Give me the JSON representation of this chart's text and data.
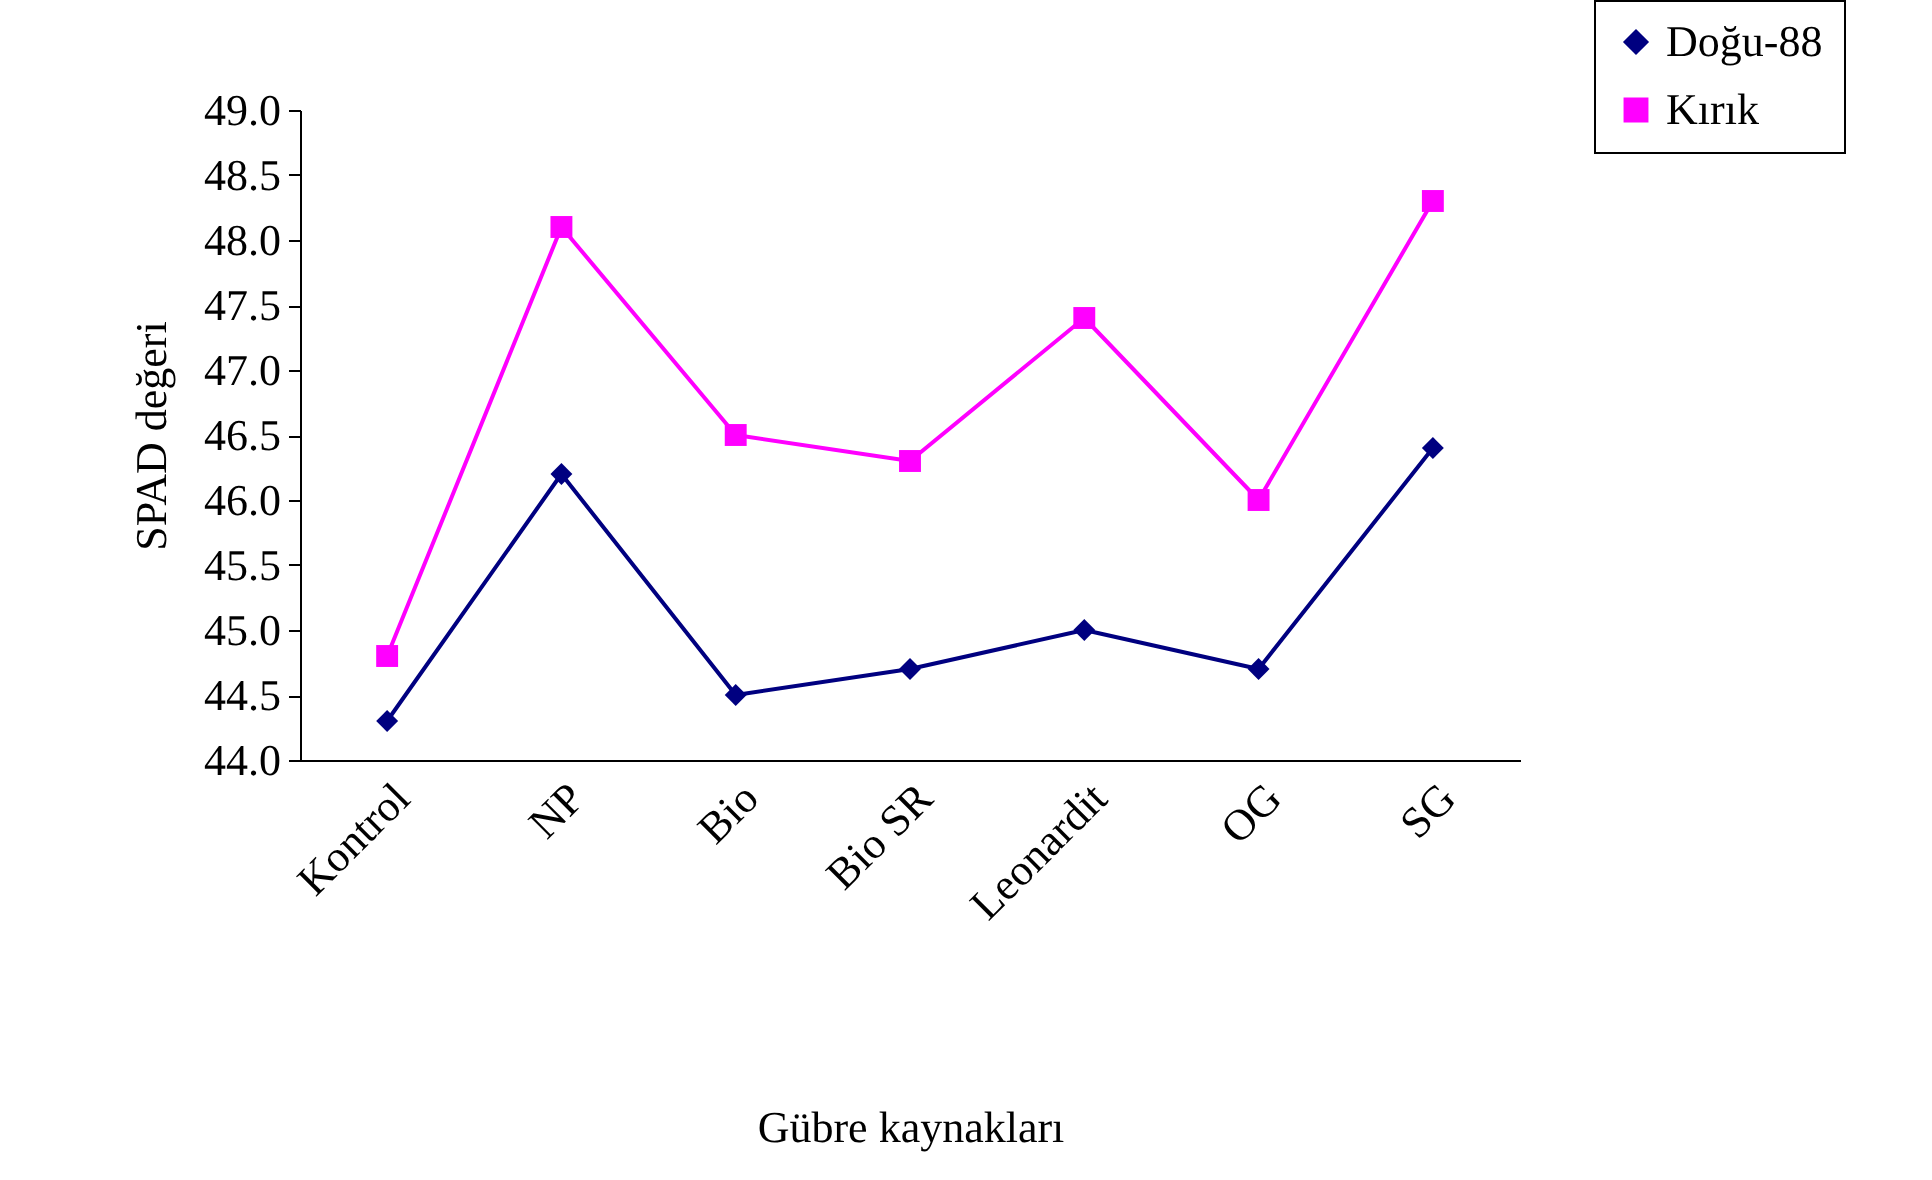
{
  "chart_data": {
    "type": "line",
    "xlabel": "Gübre kaynakları",
    "ylabel": "SPAD değeri",
    "categories": [
      "Kontrol",
      "NP",
      "Bio",
      "Bio SR",
      "Leonardit",
      "OG",
      "SG"
    ],
    "series": [
      {
        "name": "Doğu-88",
        "color": "#000080",
        "marker": "diamond",
        "values": [
          44.3,
          46.2,
          44.5,
          44.7,
          45.0,
          44.7,
          46.4
        ]
      },
      {
        "name": "Kırık",
        "color": "#ff00ff",
        "marker": "square",
        "values": [
          44.8,
          48.1,
          46.5,
          46.3,
          47.4,
          46.0,
          48.3
        ]
      }
    ],
    "ylim": [
      44,
      49
    ],
    "yticks": [
      {
        "value": 44,
        "label": "44.0"
      },
      {
        "value": 44.5,
        "label": "44.5"
      },
      {
        "value": 45,
        "label": "45.0"
      },
      {
        "value": 45.5,
        "label": "45.5"
      },
      {
        "value": 46,
        "label": "46.0"
      },
      {
        "value": 46.5,
        "label": "46.5"
      },
      {
        "value": 47,
        "label": "47.0"
      },
      {
        "value": 47.5,
        "label": "47.5"
      },
      {
        "value": 48,
        "label": "48.0"
      },
      {
        "value": 48.5,
        "label": "48.5"
      },
      {
        "value": 49,
        "label": "49.0"
      }
    ],
    "legend": "top right"
  }
}
